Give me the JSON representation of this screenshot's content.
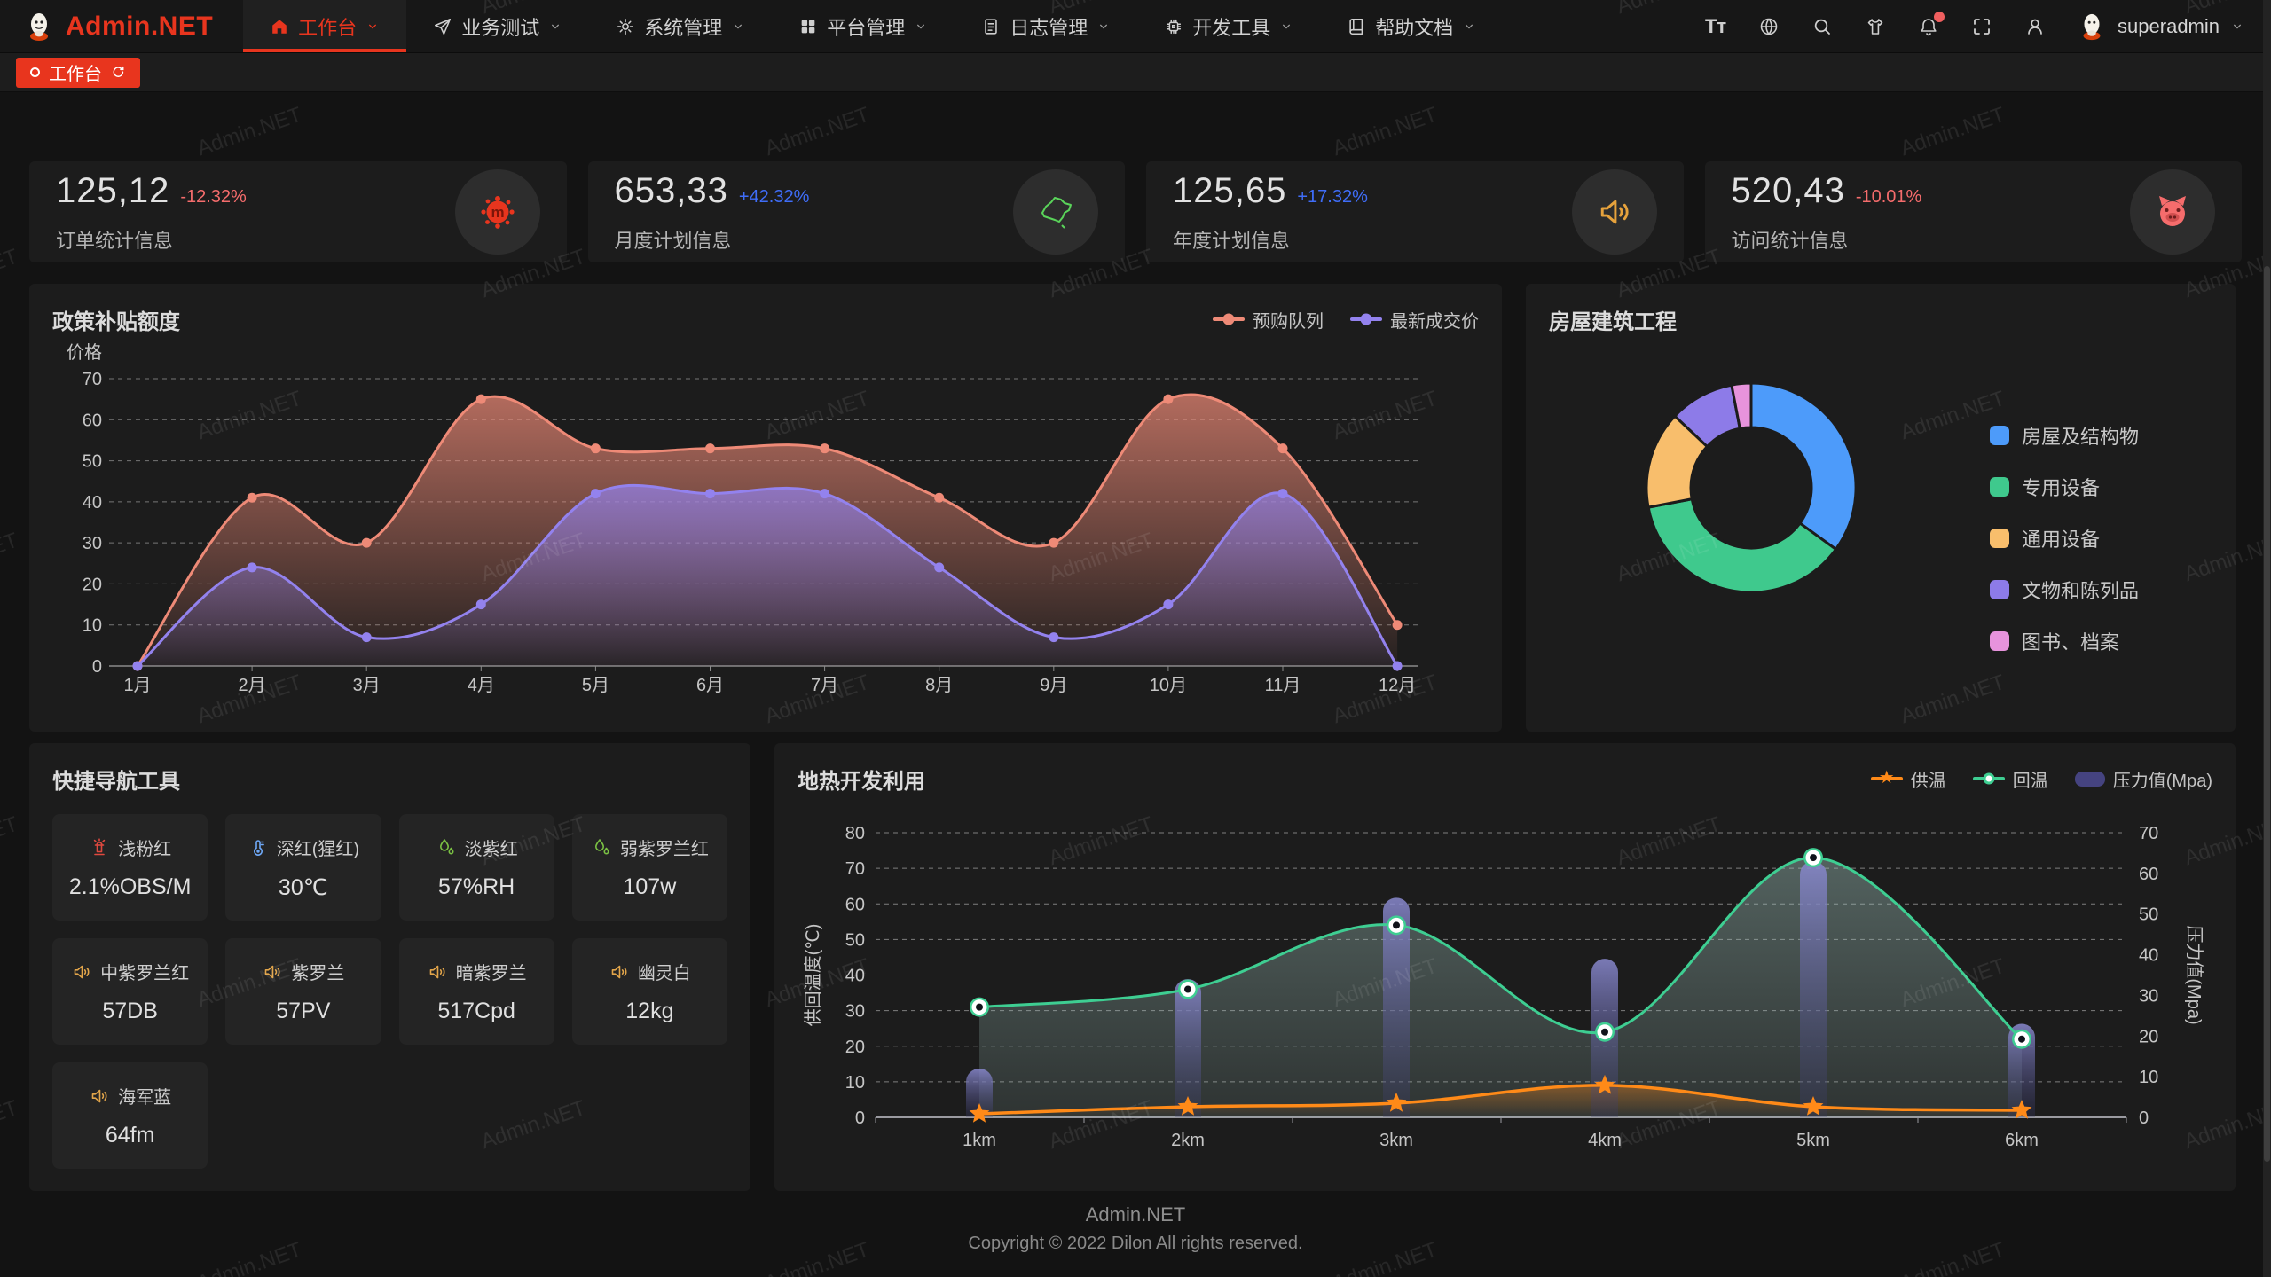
{
  "watermark": {
    "text": "Admin.NET"
  },
  "colors": {
    "up": "#3f6df8",
    "down": "#f56c6c",
    "accent": "#e8351e"
  },
  "navbar": {
    "logo_text": "Admin.NET",
    "menus": [
      {
        "label": "工作台",
        "icon": "home-icon",
        "active": true
      },
      {
        "label": "业务测试",
        "icon": "send-icon",
        "active": false
      },
      {
        "label": "系统管理",
        "icon": "gear-icon",
        "active": false
      },
      {
        "label": "平台管理",
        "icon": "grid-icon",
        "active": false
      },
      {
        "label": "日志管理",
        "icon": "log-icon",
        "active": false
      },
      {
        "label": "开发工具",
        "icon": "chip-icon",
        "active": false
      },
      {
        "label": "帮助文档",
        "icon": "book-icon",
        "active": false
      }
    ],
    "font_tool_label": "Tᴛ",
    "username": "superadmin"
  },
  "tabbar": {
    "active_tab": "工作台"
  },
  "stats": [
    {
      "value": "125,12",
      "delta": "-12.32%",
      "trend": "down",
      "label": "订单统计信息",
      "icon": "splat-icon"
    },
    {
      "value": "653,33",
      "delta": "+42.32%",
      "trend": "up",
      "label": "月度计划信息",
      "icon": "china-map-icon"
    },
    {
      "value": "125,65",
      "delta": "+17.32%",
      "trend": "up",
      "label": "年度计划信息",
      "icon": "speaker-icon"
    },
    {
      "value": "520,43",
      "delta": "-10.01%",
      "trend": "down",
      "label": "访问统计信息",
      "icon": "pig-icon"
    }
  ],
  "chart_data": [
    {
      "type": "area",
      "title": "政策补贴额度",
      "ylabel": "价格",
      "categories": [
        "1月",
        "2月",
        "3月",
        "4月",
        "5月",
        "6月",
        "7月",
        "8月",
        "9月",
        "10月",
        "11月",
        "12月"
      ],
      "ylim": [
        0,
        70
      ],
      "ytick_step": 10,
      "grid": "dashed",
      "legend_position": "top-right",
      "series": [
        {
          "name": "预购队列",
          "color": "#ee8a77",
          "values": [
            0,
            41,
            30,
            65,
            53,
            53,
            53,
            41,
            30,
            65,
            53,
            10
          ]
        },
        {
          "name": "最新成交价",
          "color": "#9382ee",
          "values": [
            0,
            24,
            7,
            15,
            42,
            42,
            42,
            24,
            7,
            15,
            42,
            0
          ]
        }
      ]
    },
    {
      "type": "pie",
      "title": "房屋建筑工程",
      "legend_position": "right",
      "slices": [
        {
          "name": "房屋及结构物",
          "value": 35,
          "color": "#4d9bfa"
        },
        {
          "name": "专用设备",
          "value": 37,
          "color": "#3fc98d"
        },
        {
          "name": "通用设备",
          "value": 15,
          "color": "#f8be6c"
        },
        {
          "name": "文物和陈列品",
          "value": 10,
          "color": "#8d7be8"
        },
        {
          "name": "图书、档案",
          "value": 3,
          "color": "#e793dc"
        }
      ]
    },
    {
      "type": "line+bar",
      "title": "地热开发利用",
      "categories": [
        "1km",
        "2km",
        "3km",
        "4km",
        "5km",
        "6km"
      ],
      "y_left": {
        "label": "供回温度(℃)",
        "range": [
          0,
          80
        ],
        "step": 10
      },
      "y_right": {
        "label": "压力值(Mpa)",
        "range": [
          0,
          70
        ],
        "step": 10
      },
      "grid": "dashed",
      "legend_position": "top-right",
      "series": [
        {
          "name": "供温",
          "type": "line",
          "axis": "left",
          "color": "#ff8a18",
          "marker": "star",
          "values": [
            1,
            3,
            4,
            9,
            3,
            2
          ]
        },
        {
          "name": "回温",
          "type": "line",
          "axis": "left",
          "color": "#3ece92",
          "marker": "circle",
          "values": [
            31,
            36,
            54,
            24,
            73,
            22
          ]
        },
        {
          "name": "压力值(Mpa)",
          "type": "bar",
          "axis": "right",
          "color": "#454380",
          "values": [
            12,
            34,
            54,
            39,
            63,
            23
          ]
        }
      ]
    }
  ],
  "quick_nav": {
    "title": "快捷导航工具",
    "items": [
      {
        "name": "浅粉红",
        "value": "2.1%OBS/M",
        "icon": "hydrant-icon",
        "icon_color": "#e0493f"
      },
      {
        "name": "深红(猩红)",
        "value": "30℃",
        "icon": "thermometer-icon",
        "icon_color": "#6ea8f7"
      },
      {
        "name": "淡紫红",
        "value": "57%RH",
        "icon": "drops-icon",
        "icon_color": "#7ac143"
      },
      {
        "name": "弱紫罗兰红",
        "value": "107w",
        "icon": "drops-icon",
        "icon_color": "#7ac143"
      },
      {
        "name": "中紫罗兰红",
        "value": "57DB",
        "icon": "speaker-icon",
        "icon_color": "#e2a54a"
      },
      {
        "name": "紫罗兰",
        "value": "57PV",
        "icon": "speaker-icon",
        "icon_color": "#e2a54a"
      },
      {
        "name": "暗紫罗兰",
        "value": "517Cpd",
        "icon": "speaker-icon",
        "icon_color": "#e2a54a"
      },
      {
        "name": "幽灵白",
        "value": "12kg",
        "icon": "speaker-icon",
        "icon_color": "#e2a54a"
      },
      {
        "name": "海军蓝",
        "value": "64fm",
        "icon": "speaker-icon",
        "icon_color": "#e2a54a"
      }
    ]
  },
  "footer": {
    "line1": "Admin.NET",
    "line2": "Copyright © 2022 Dilon All rights reserved."
  }
}
